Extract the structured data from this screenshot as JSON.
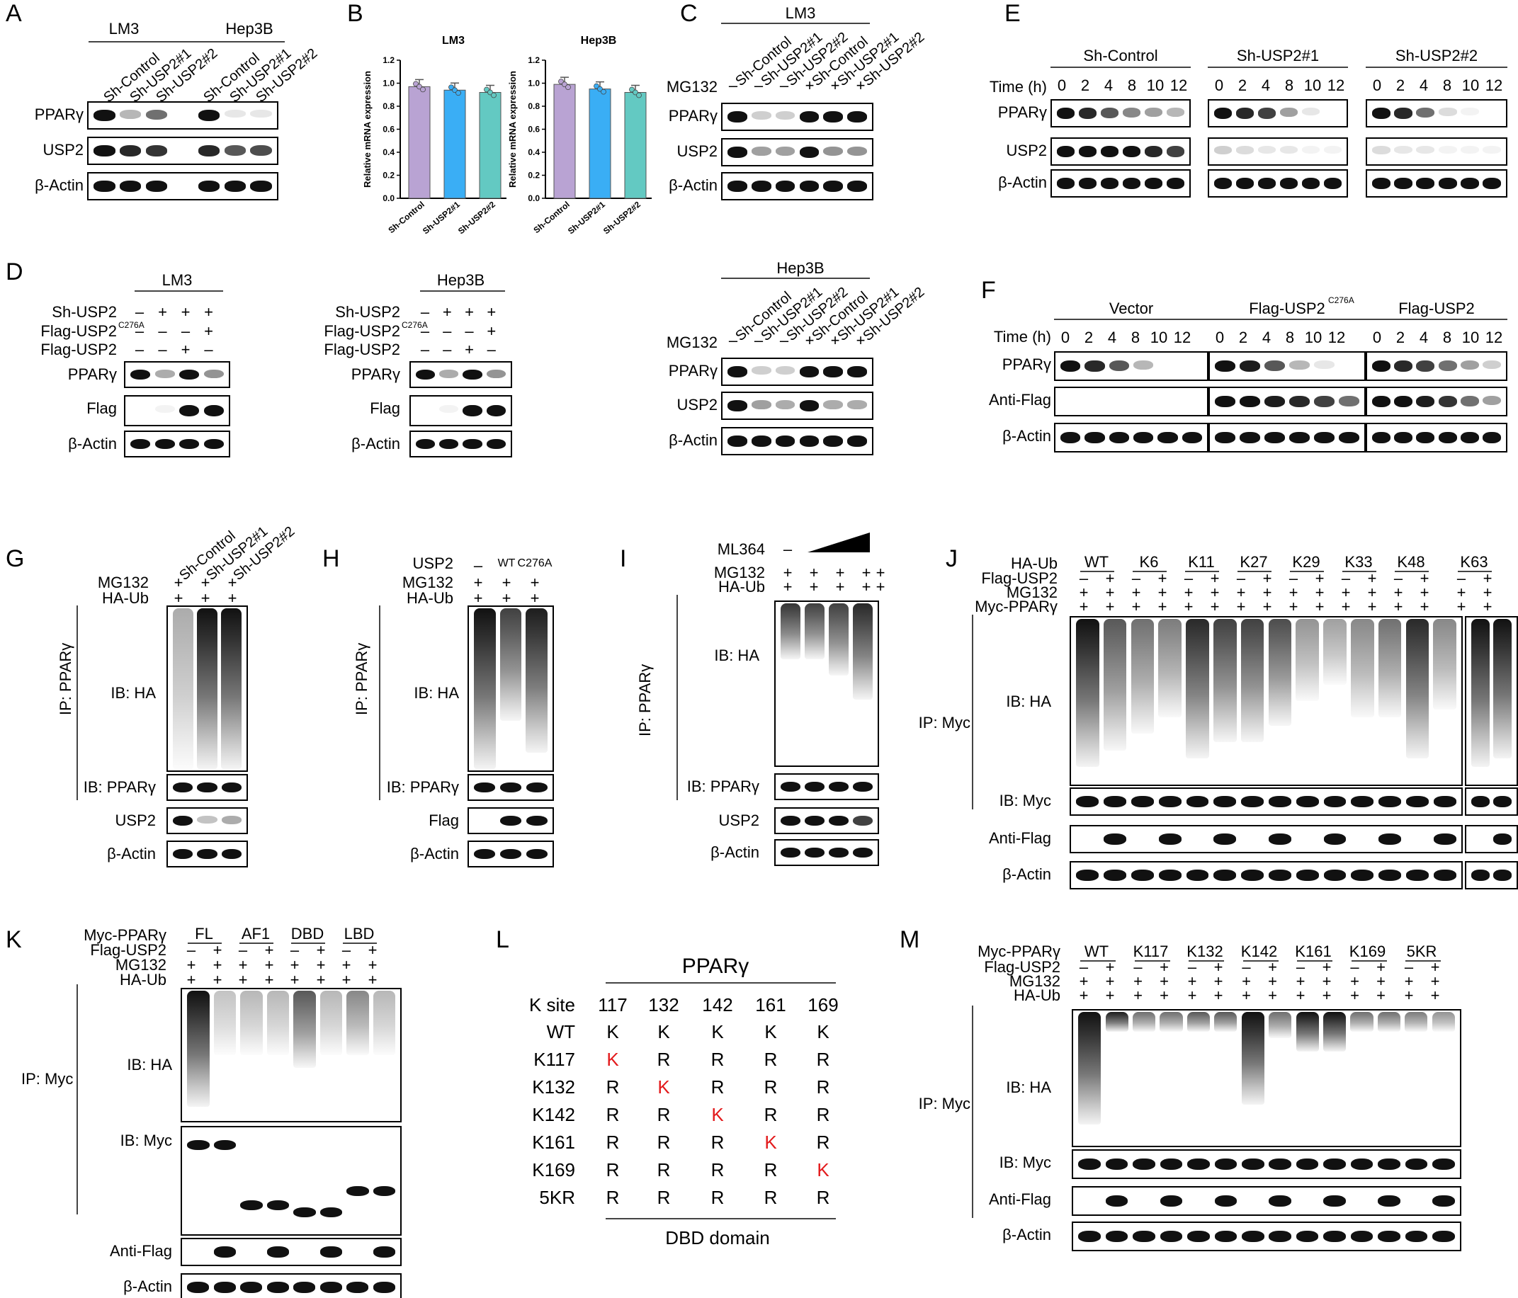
{
  "panels": [
    "A",
    "B",
    "C",
    "D",
    "E",
    "F",
    "G",
    "H",
    "I",
    "J",
    "K",
    "L",
    "M"
  ],
  "common": {
    "pparg": "PPARγ",
    "usp2": "USP2",
    "actin": "β-Actin",
    "flag": "Flag",
    "anti_flag": "Anti-Flag",
    "mg132": "MG132",
    "ha_ub": "HA-Ub",
    "plus": "+",
    "minus": "–",
    "ip_pparg": "IP: PPARγ",
    "ip_myc": "IP: Myc",
    "ib_ha": "IB: HA",
    "ib_pparg": "IB: PPARγ",
    "ib_myc": "IB: Myc",
    "time_h": "Time (h)",
    "sh_usp2": "Sh-USP2",
    "flag_usp2": "Flag-USP2",
    "flag_usp2_c276a": "Flag-USP2",
    "c276a_sup": "C276A",
    "lm3": "LM3",
    "hep3b": "Hep3B"
  },
  "lanes_sh3": [
    "Sh-Control",
    "Sh-USP2#1",
    "Sh-USP2#2"
  ],
  "time_points": [
    "0",
    "2",
    "4",
    "8",
    "10",
    "12"
  ],
  "panel_e": {
    "groups": [
      "Sh-Control",
      "Sh-USP2#1",
      "Sh-USP2#2"
    ]
  },
  "panel_f": {
    "groups": [
      "Vector",
      "Flag-USP2",
      "Flag-USP2"
    ],
    "sup": "C276A"
  },
  "panel_h": {
    "usp2": "USP2",
    "lanes": [
      "–",
      "WT",
      "C276A"
    ]
  },
  "panel_i": {
    "ml364": "ML364"
  },
  "panel_j": {
    "myc_pparg": "Myc-PPARγ",
    "flag_usp2": "Flag-USP2",
    "groups": [
      "WT",
      "K6",
      "K11",
      "K27",
      "K29",
      "K33",
      "K48",
      "K63"
    ]
  },
  "panel_k": {
    "myc_pparg": "Myc-PPARγ",
    "flag_usp2": "Flag-USP2",
    "groups": [
      "FL",
      "AF1",
      "DBD",
      "LBD"
    ]
  },
  "panel_m": {
    "myc_pparg": "Myc-PPARγ",
    "flag_usp2": "Flag-USP2",
    "groups": [
      "WT",
      "K117",
      "K132",
      "K142",
      "K161",
      "K169",
      "5KR"
    ]
  },
  "panel_l": {
    "title": "PPARγ",
    "header_label": "K site",
    "sites": [
      "117",
      "132",
      "142",
      "161",
      "169"
    ],
    "rows": [
      {
        "name": "WT",
        "cells": [
          "K",
          "K",
          "K",
          "K",
          "K"
        ]
      },
      {
        "name": "K117",
        "cells": [
          "K",
          "R",
          "R",
          "R",
          "R"
        ]
      },
      {
        "name": "K132",
        "cells": [
          "R",
          "K",
          "R",
          "R",
          "R"
        ]
      },
      {
        "name": "K142",
        "cells": [
          "R",
          "R",
          "K",
          "R",
          "R"
        ]
      },
      {
        "name": "K161",
        "cells": [
          "R",
          "R",
          "R",
          "K",
          "R"
        ]
      },
      {
        "name": "K169",
        "cells": [
          "R",
          "R",
          "R",
          "R",
          "K"
        ]
      },
      {
        "name": "5KR",
        "cells": [
          "R",
          "R",
          "R",
          "R",
          "R"
        ]
      }
    ],
    "footer": "DBD domain"
  },
  "chart_data": [
    {
      "type": "bar",
      "title": "LM3",
      "categories": [
        "Sh-Control",
        "Sh-USP2#1",
        "Sh-USP2#2"
      ],
      "values": [
        0.97,
        0.94,
        0.92
      ],
      "ylabel": "Relative mRNA expression",
      "ylim": [
        0,
        1.2
      ],
      "yticks": [
        "0.0",
        "0.2",
        "0.4",
        "0.6",
        "0.8",
        "1.0",
        "1.2"
      ],
      "colors": [
        "#b9a3d3",
        "#3aaef5",
        "#63c9c2"
      ]
    },
    {
      "type": "bar",
      "title": "Hep3B",
      "categories": [
        "Sh-Control",
        "Sh-USP2#1",
        "Sh-USP2#2"
      ],
      "values": [
        0.99,
        0.95,
        0.92
      ],
      "ylabel": "Relative mRNA expression",
      "ylim": [
        0,
        1.2
      ],
      "yticks": [
        "0.0",
        "0.2",
        "0.4",
        "0.6",
        "0.8",
        "1.0",
        "1.2"
      ],
      "colors": [
        "#b9a3d3",
        "#3aaef5",
        "#63c9c2"
      ]
    }
  ]
}
